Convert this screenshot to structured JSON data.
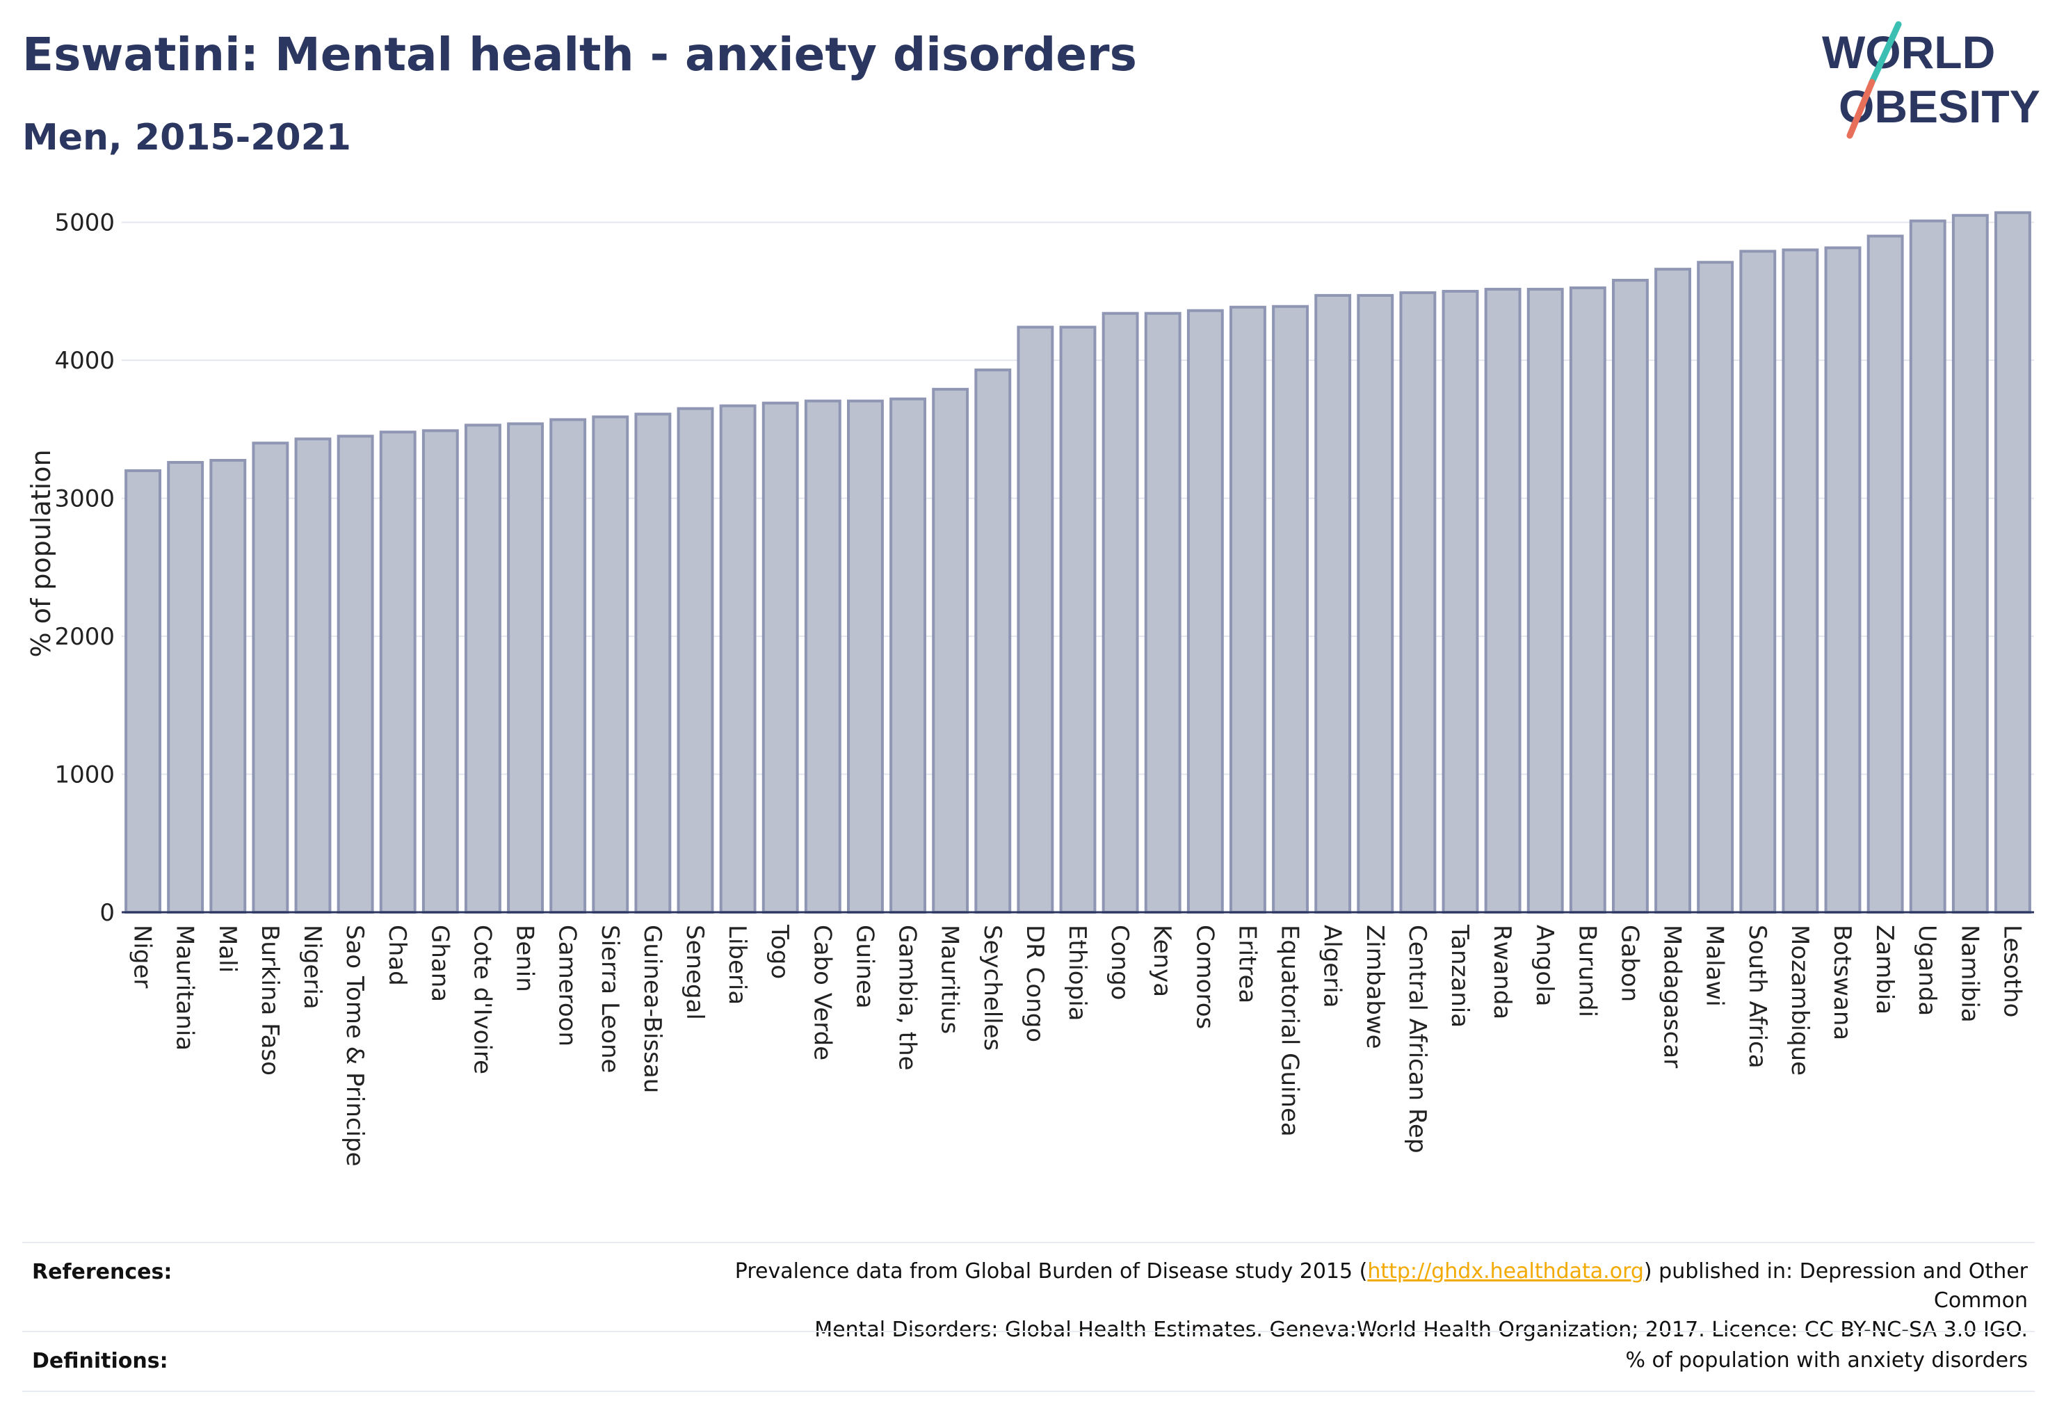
{
  "header": {
    "title": "Eswatini: Mental health - anxiety disorders",
    "subtitle": "Men, 2015-2021"
  },
  "logo": {
    "line1": "WORLD",
    "line2": "OBESITY",
    "colors": {
      "text": "#2b3760",
      "slash_teal": "#3bbfb3",
      "slash_coral": "#e8705b"
    }
  },
  "references": {
    "label": "References:",
    "text_before": "Prevalence data from Global Burden of Disease study 2015 (",
    "link": "http://ghdx.healthdata.org",
    "text_after": ") published in: Depression and Other Common",
    "line2": "Mental Disorders: Global Health Estimates. Geneva:World Health Organization; 2017. Licence: CC BY-NC-SA 3.0 IGO."
  },
  "definitions": {
    "label": "Definitions:",
    "text": "% of population with anxiety disorders"
  },
  "chart_data": {
    "type": "bar",
    "ylabel": "% of population",
    "ylim": [
      0,
      5200
    ],
    "yticks": [
      0,
      1000,
      2000,
      3000,
      4000,
      5000
    ],
    "grid": true,
    "categories": [
      "Niger",
      "Mauritania",
      "Mali",
      "Burkina Faso",
      "Nigeria",
      "Sao Tome & Principe",
      "Chad",
      "Ghana",
      "Cote d'Ivoire",
      "Benin",
      "Cameroon",
      "Sierra Leone",
      "Guinea-Bissau",
      "Senegal",
      "Liberia",
      "Togo",
      "Cabo Verde",
      "Guinea",
      "Gambia, the",
      "Mauritius",
      "Seychelles",
      "DR Congo",
      "Ethiopia",
      "Congo",
      "Kenya",
      "Comoros",
      "Eritrea",
      "Equatorial Guinea",
      "Algeria",
      "Zimbabwe",
      "Central African Rep",
      "Tanzania",
      "Rwanda",
      "Angola",
      "Burundi",
      "Gabon",
      "Madagascar",
      "Malawi",
      "South Africa",
      "Mozambique",
      "Botswana",
      "Zambia",
      "Uganda",
      "Namibia",
      "Lesotho"
    ],
    "values": [
      3200,
      3260,
      3275,
      3400,
      3430,
      3450,
      3480,
      3490,
      3530,
      3540,
      3570,
      3590,
      3610,
      3650,
      3670,
      3690,
      3705,
      3705,
      3720,
      3790,
      3930,
      4240,
      4240,
      4340,
      4340,
      4360,
      4385,
      4390,
      4470,
      4470,
      4490,
      4500,
      4515,
      4515,
      4525,
      4580,
      4660,
      4710,
      4790,
      4800,
      4815,
      4900,
      5010,
      5050,
      5070
    ],
    "colors": {
      "bar_fill": "#bcc1d0",
      "bar_stroke": "#8e96b3",
      "grid": "#e4e7ef",
      "axis": "#2b3760"
    }
  }
}
